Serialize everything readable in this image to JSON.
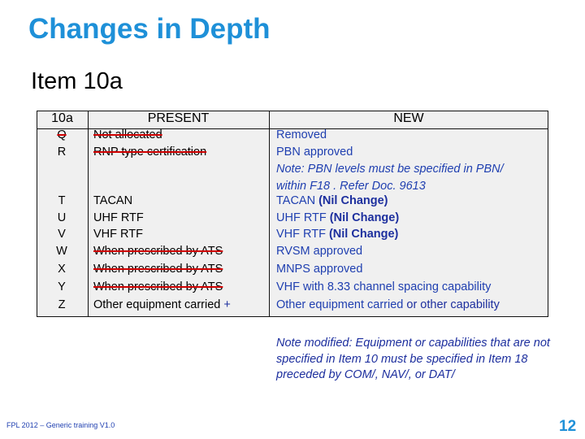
{
  "title": "Changes in Depth",
  "subtitle": "Item 10a",
  "table": {
    "headers": {
      "code": "10a",
      "present": "PRESENT",
      "new": "NEW"
    },
    "rows": [
      {
        "code": "Q",
        "present": "Not allocated",
        "new": "Removed"
      },
      {
        "code": "R",
        "present": "RNP type certification",
        "new": "PBN approved"
      },
      {
        "code": "",
        "present": "",
        "new": " Note: PBN levels must be specified in PBN/"
      },
      {
        "code": "",
        "present": "",
        "new": "within F18 . Refer Doc. 9613"
      },
      {
        "code": "T",
        "present": "TACAN",
        "new": "TACAN",
        "new_suffix": " (Nil Change)"
      },
      {
        "code": "U",
        "present": "UHF RTF",
        "new": "UHF RTF",
        "new_suffix": " (Nil Change)"
      },
      {
        "code": "V",
        "present": "VHF RTF",
        "new": "VHF RTF",
        "new_suffix": " (Nil Change)"
      },
      {
        "code": "W",
        "present": "When prescribed by ATS",
        "new": "RVSM approved"
      },
      {
        "code": "X",
        "present": "When prescribed by ATS",
        "new": "MNPS approved"
      },
      {
        "code": "Y",
        "present": "When prescribed by ATS",
        "new": "VHF with 8.33 channel spacing capability"
      },
      {
        "code": "Z",
        "present": "Other equipment carried",
        "present_suffix": " +",
        "new": "Other equipment carried",
        "new_suffix": " or other capability"
      }
    ]
  },
  "footnote": "Note modified: Equipment or capabilities that are not specified in Item 10 must be specified in Item 18 preceded by COM/, NAV/, or DAT/",
  "footer": "FPL 2012 – Generic training V1.0",
  "page_number": "12",
  "colors": {
    "title": "#1e90d8",
    "new_text": "#1f3fb0",
    "strike": "#d00000",
    "table_bg": "#f0f0f0"
  }
}
